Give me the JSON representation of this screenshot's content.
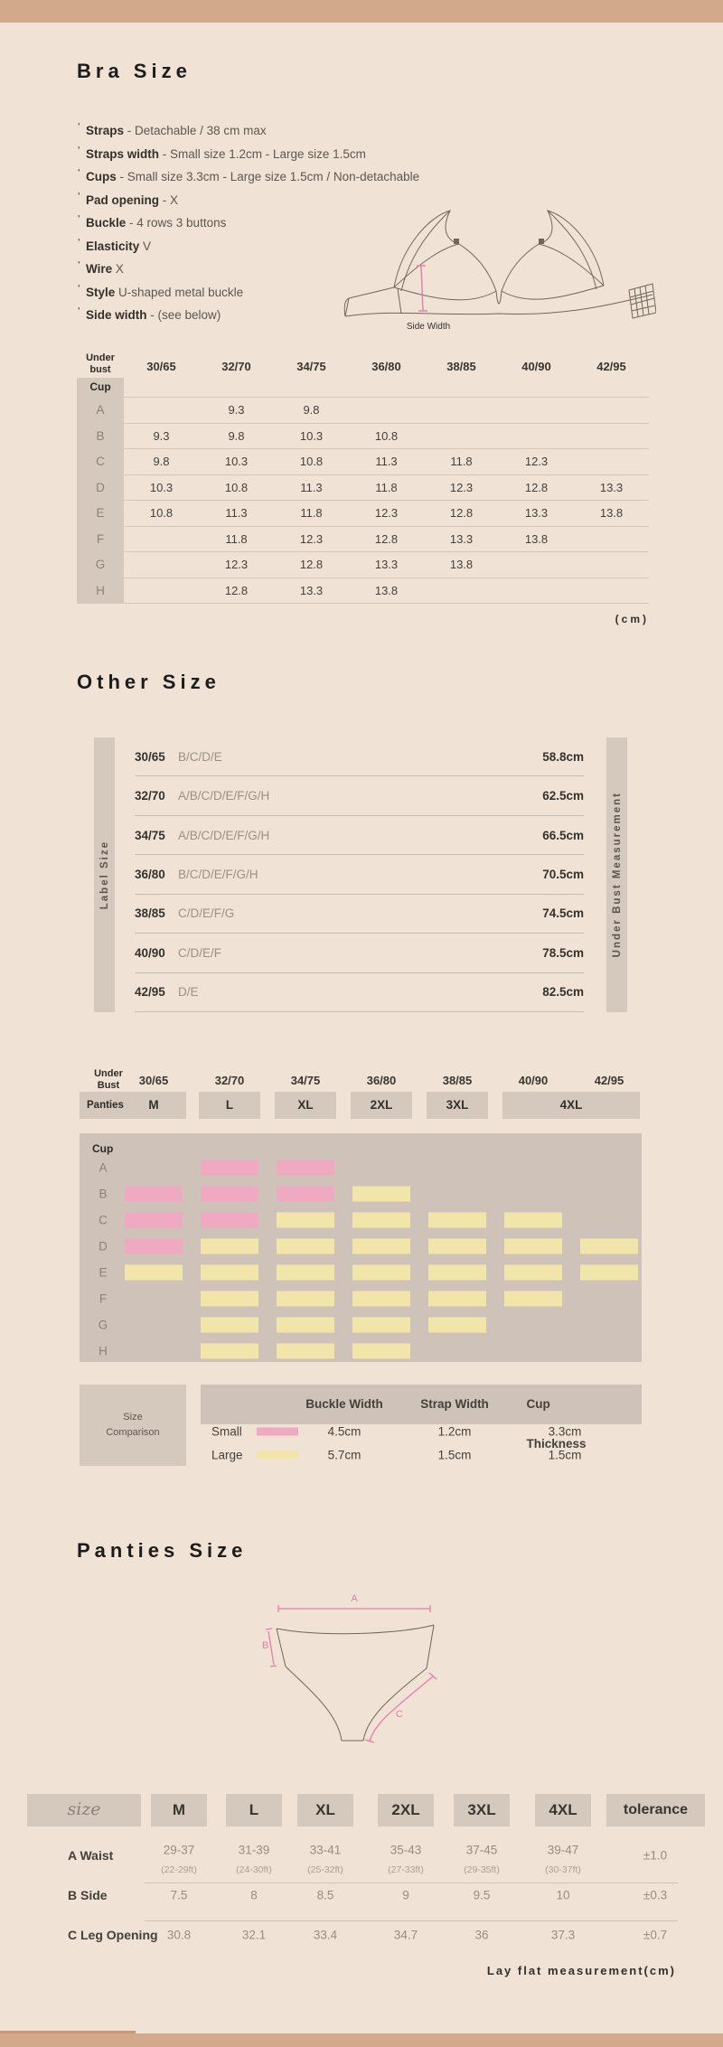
{
  "page": {
    "bg": "#f0e3d6",
    "bar_color": "#d2a98b",
    "box_gray": "#d5c9be",
    "panel_gray": "#cfc3b9"
  },
  "bra_size": {
    "title": "Bra Size",
    "features": [
      {
        "label": "Straps",
        "value": " - Detachable / 38 cm max"
      },
      {
        "label": "Straps width",
        "value": " - Small size 1.2cm - Large size 1.5cm"
      },
      {
        "label": "Cups",
        "value": " - Small size 3.3cm - Large size 1.5cm / Non-detachable"
      },
      {
        "label": "Pad opening",
        "value": " - X"
      },
      {
        "label": "Buckle",
        "value": " - 4 rows 3 buttons"
      },
      {
        "label": "Elasticity",
        "value": " V"
      },
      {
        "label": "Wire",
        "value": " X"
      },
      {
        "label": "Style",
        "value": " U-shaped metal buckle"
      },
      {
        "label": "Side width",
        "value": " - (see below)"
      }
    ],
    "diagram_label": "Side Width",
    "table": {
      "corner_top": "Under bust",
      "corner_bottom": "Cup",
      "columns": [
        "30/65",
        "32/70",
        "34/75",
        "36/80",
        "38/85",
        "40/90",
        "42/95"
      ],
      "rows": [
        {
          "cup": "A",
          "values": [
            "",
            "9.3",
            "9.8",
            "",
            "",
            "",
            ""
          ]
        },
        {
          "cup": "B",
          "values": [
            "9.3",
            "9.8",
            "10.3",
            "10.8",
            "",
            "",
            ""
          ]
        },
        {
          "cup": "C",
          "values": [
            "9.8",
            "10.3",
            "10.8",
            "11.3",
            "11.8",
            "12.3",
            ""
          ]
        },
        {
          "cup": "D",
          "values": [
            "10.3",
            "10.8",
            "11.3",
            "11.8",
            "12.3",
            "12.8",
            "13.3"
          ]
        },
        {
          "cup": "E",
          "values": [
            "10.8",
            "11.3",
            "11.8",
            "12.3",
            "12.8",
            "13.3",
            "13.8"
          ]
        },
        {
          "cup": "F",
          "values": [
            "",
            "11.8",
            "12.3",
            "12.8",
            "13.3",
            "13.8",
            ""
          ]
        },
        {
          "cup": "G",
          "values": [
            "",
            "12.3",
            "12.8",
            "13.3",
            "13.8",
            "",
            ""
          ]
        },
        {
          "cup": "H",
          "values": [
            "",
            "12.8",
            "13.3",
            "13.8",
            "",
            "",
            ""
          ]
        }
      ],
      "unit": "(cm)"
    }
  },
  "other_size": {
    "title": "Other Size",
    "left_axis": "Label Size",
    "right_axis": "Under Bust Measurement",
    "rows": [
      {
        "size": "30/65",
        "cups": "B/C/D/E",
        "measurement": "58.8cm"
      },
      {
        "size": "32/70",
        "cups": "A/B/C/D/E/F/G/H",
        "measurement": "62.5cm"
      },
      {
        "size": "34/75",
        "cups": "A/B/C/D/E/F/G/H",
        "measurement": "66.5cm"
      },
      {
        "size": "36/80",
        "cups": "B/C/D/E/F/G/H",
        "measurement": "70.5cm"
      },
      {
        "size": "38/85",
        "cups": "C/D/E/F/G",
        "measurement": "74.5cm"
      },
      {
        "size": "40/90",
        "cups": "C/D/E/F",
        "measurement": "78.5cm"
      },
      {
        "size": "42/95",
        "cups": "D/E",
        "measurement": "82.5cm"
      }
    ]
  },
  "panties_match": {
    "header_label": "Under Bust",
    "columns": [
      "30/65",
      "32/70",
      "34/75",
      "36/80",
      "38/85",
      "40/90",
      "42/95"
    ],
    "panties_label": "Panties",
    "panties_sizes": [
      {
        "label": "M",
        "span": 1
      },
      {
        "label": "L",
        "span": 1
      },
      {
        "label": "XL",
        "span": 1
      },
      {
        "label": "2XL",
        "span": 1
      },
      {
        "label": "3XL",
        "span": 1
      },
      {
        "label": "4XL",
        "span": 2
      }
    ],
    "cup_label": "Cup",
    "rows": [
      {
        "cup": "A",
        "cells": [
          "",
          "small",
          "small",
          "",
          "",
          "",
          ""
        ]
      },
      {
        "cup": "B",
        "cells": [
          "small",
          "small",
          "small",
          "large",
          "",
          "",
          ""
        ]
      },
      {
        "cup": "C",
        "cells": [
          "small",
          "small",
          "large",
          "large",
          "large",
          "large",
          ""
        ]
      },
      {
        "cup": "D",
        "cells": [
          "small",
          "large",
          "large",
          "large",
          "large",
          "large",
          "large"
        ]
      },
      {
        "cup": "E",
        "cells": [
          "large",
          "large",
          "large",
          "large",
          "large",
          "large",
          "large"
        ]
      },
      {
        "cup": "F",
        "cells": [
          "",
          "large",
          "large",
          "large",
          "large",
          "large",
          ""
        ]
      },
      {
        "cup": "G",
        "cells": [
          "",
          "large",
          "large",
          "large",
          "large",
          "",
          ""
        ]
      },
      {
        "cup": "H",
        "cells": [
          "",
          "large",
          "large",
          "large",
          "",
          "",
          ""
        ]
      }
    ],
    "colors": {
      "small": "#efaac2",
      "large": "#f2e5a9"
    },
    "legend": {
      "box_line1": "Size",
      "box_line2": "Comparison",
      "columns": [
        "Buckle Width",
        "Strap Width",
        "Cup Thickness"
      ],
      "rows": [
        {
          "name": "Small",
          "swatch": "small",
          "values": [
            "4.5cm",
            "1.2cm",
            "3.3cm"
          ]
        },
        {
          "name": "Large",
          "swatch": "large",
          "values": [
            "5.7cm",
            "1.5cm",
            "1.5cm"
          ]
        }
      ]
    }
  },
  "panties_size": {
    "title": "Panties Size",
    "annotations": {
      "a": "A",
      "b": "B",
      "c": "C"
    },
    "table": {
      "size_header": "size",
      "sizes": [
        "M",
        "L",
        "XL",
        "2XL",
        "3XL",
        "4XL"
      ],
      "tolerance_label": "tolerance",
      "rows": [
        {
          "label": "A Waist",
          "values": [
            "29-37",
            "31-39",
            "33-41",
            "35-43",
            "37-45",
            "39-47"
          ],
          "subvalues": [
            "(22-29ft)",
            "(24-30ft)",
            "(25-32ft)",
            "(27-33ft)",
            "(29-35ft)",
            "(30-37ft)"
          ],
          "tolerance": "±1.0"
        },
        {
          "label": "B Side",
          "values": [
            "7.5",
            "8",
            "8.5",
            "9",
            "9.5",
            "10"
          ],
          "subvalues": null,
          "tolerance": "±0.3"
        },
        {
          "label": "C Leg Opening",
          "values": [
            "30.8",
            "32.1",
            "33.4",
            "34.7",
            "36",
            "37.3"
          ],
          "subvalues": null,
          "tolerance": "±0.7"
        }
      ],
      "footnote": "Lay flat measurement(cm)"
    }
  }
}
